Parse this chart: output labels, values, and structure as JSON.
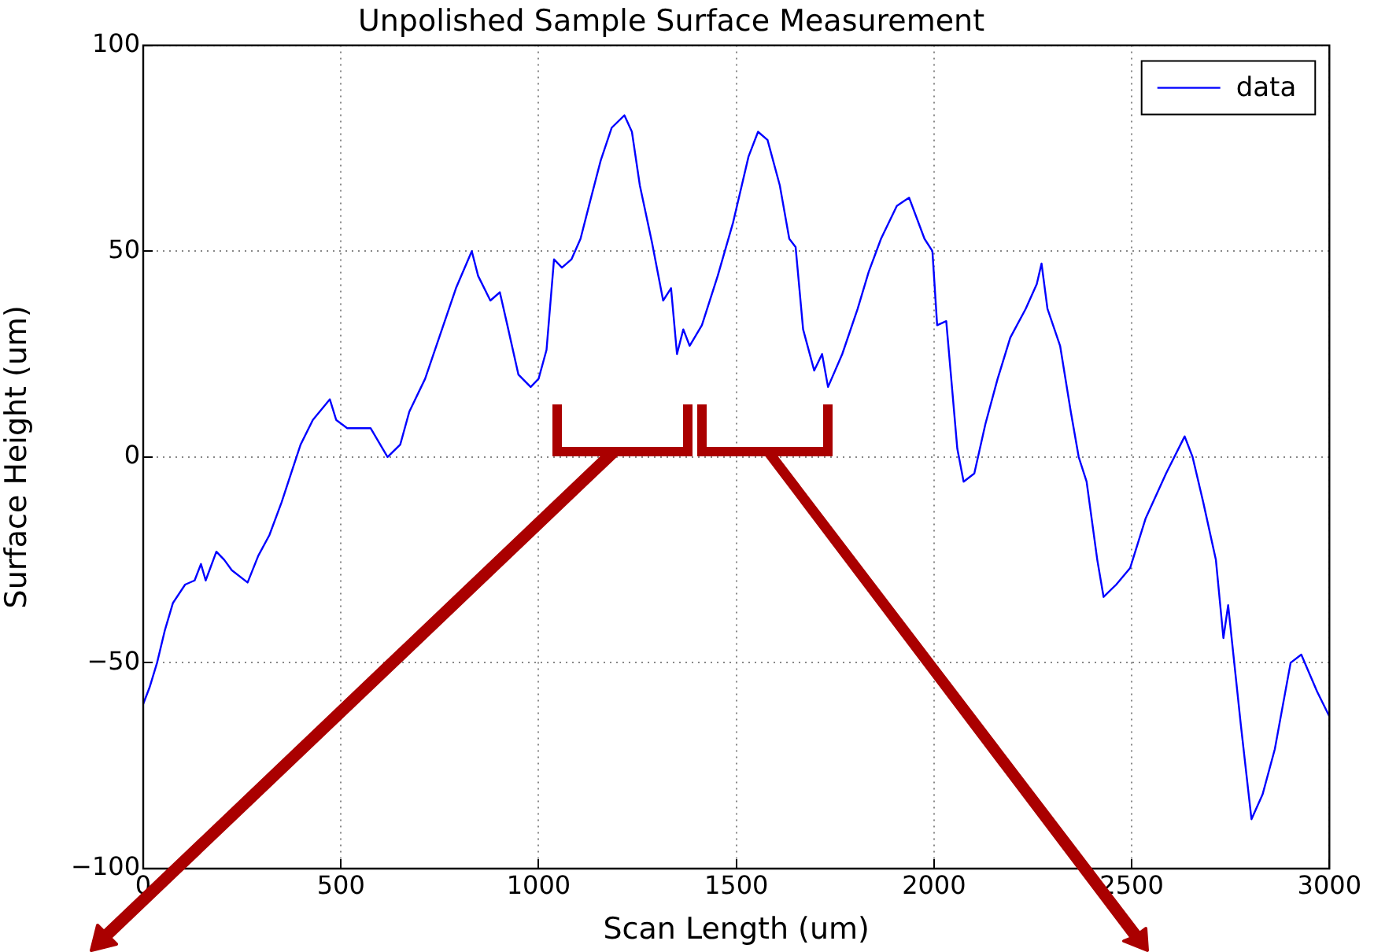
{
  "chart_data": {
    "type": "line",
    "title": "Unpolished Sample Surface Measurement",
    "xlabel": "Scan Length (um)",
    "ylabel": "Surface Height (um)",
    "xlim": [
      0,
      3000
    ],
    "xticks": [
      0,
      500,
      1000,
      1500,
      2000,
      2500,
      3000
    ],
    "ylim": [
      -100,
      100
    ],
    "yticks": [
      {
        "value": -100,
        "label": "−100"
      },
      {
        "value": -50,
        "label": "−50"
      },
      0,
      50,
      100
    ],
    "grid": true,
    "legend": "top right",
    "marker": "none",
    "line_style": "solid",
    "series": [
      {
        "name": "data",
        "color": "#0000ff",
        "x": [
          0,
          16,
          35,
          55,
          75,
          106,
          130,
          146,
          158,
          185,
          205,
          224,
          264,
          291,
          319,
          350,
          374,
          398,
          429,
          472,
          488,
          516,
          575,
          618,
          650,
          673,
          713,
          752,
          791,
          831,
          847,
          878,
          902,
          921,
          949,
          980,
          1000,
          1020,
          1039,
          1059,
          1083,
          1106,
          1130,
          1157,
          1185,
          1217,
          1236,
          1256,
          1287,
          1315,
          1335,
          1350,
          1366,
          1382,
          1413,
          1453,
          1492,
          1531,
          1555,
          1579,
          1610,
          1634,
          1650,
          1669,
          1697,
          1717,
          1732,
          1768,
          1807,
          1835,
          1866,
          1906,
          1937,
          1976,
          1996,
          2008,
          2031,
          2059,
          2075,
          2102,
          2130,
          2161,
          2193,
          2232,
          2260,
          2272,
          2287,
          2319,
          2346,
          2366,
          2386,
          2413,
          2429,
          2461,
          2496,
          2535,
          2587,
          2634,
          2654,
          2681,
          2713,
          2732,
          2744,
          2776,
          2803,
          2831,
          2862,
          2902,
          2929,
          2969,
          3000
        ],
        "values": [
          -60,
          -56,
          -50,
          -42,
          -35.5,
          -31,
          -30,
          -26,
          -30,
          -23,
          -25,
          -27.5,
          -30.5,
          -24,
          -19,
          -11,
          -4,
          3,
          9,
          14,
          9,
          7,
          7,
          0,
          3,
          11,
          19,
          30,
          41,
          50,
          44,
          38,
          40,
          32,
          20,
          17,
          19,
          26,
          48,
          46,
          48,
          53,
          62,
          72,
          80,
          83,
          79,
          66,
          52,
          38,
          41,
          25,
          31,
          27,
          32,
          44,
          57,
          73,
          79,
          77,
          66,
          53,
          51,
          31,
          21,
          25,
          17,
          25,
          36,
          45,
          53,
          61,
          63,
          53,
          50,
          32,
          33,
          2,
          -6,
          -4,
          8,
          19,
          29,
          36,
          42,
          47,
          36,
          27,
          11,
          0,
          -6,
          -25,
          -34,
          -31,
          -27,
          -15,
          -4,
          5,
          0,
          -11,
          -25,
          -44,
          -36,
          -65,
          -88,
          -82,
          -71,
          -50,
          -48,
          -57,
          -63
        ]
      }
    ]
  }
}
